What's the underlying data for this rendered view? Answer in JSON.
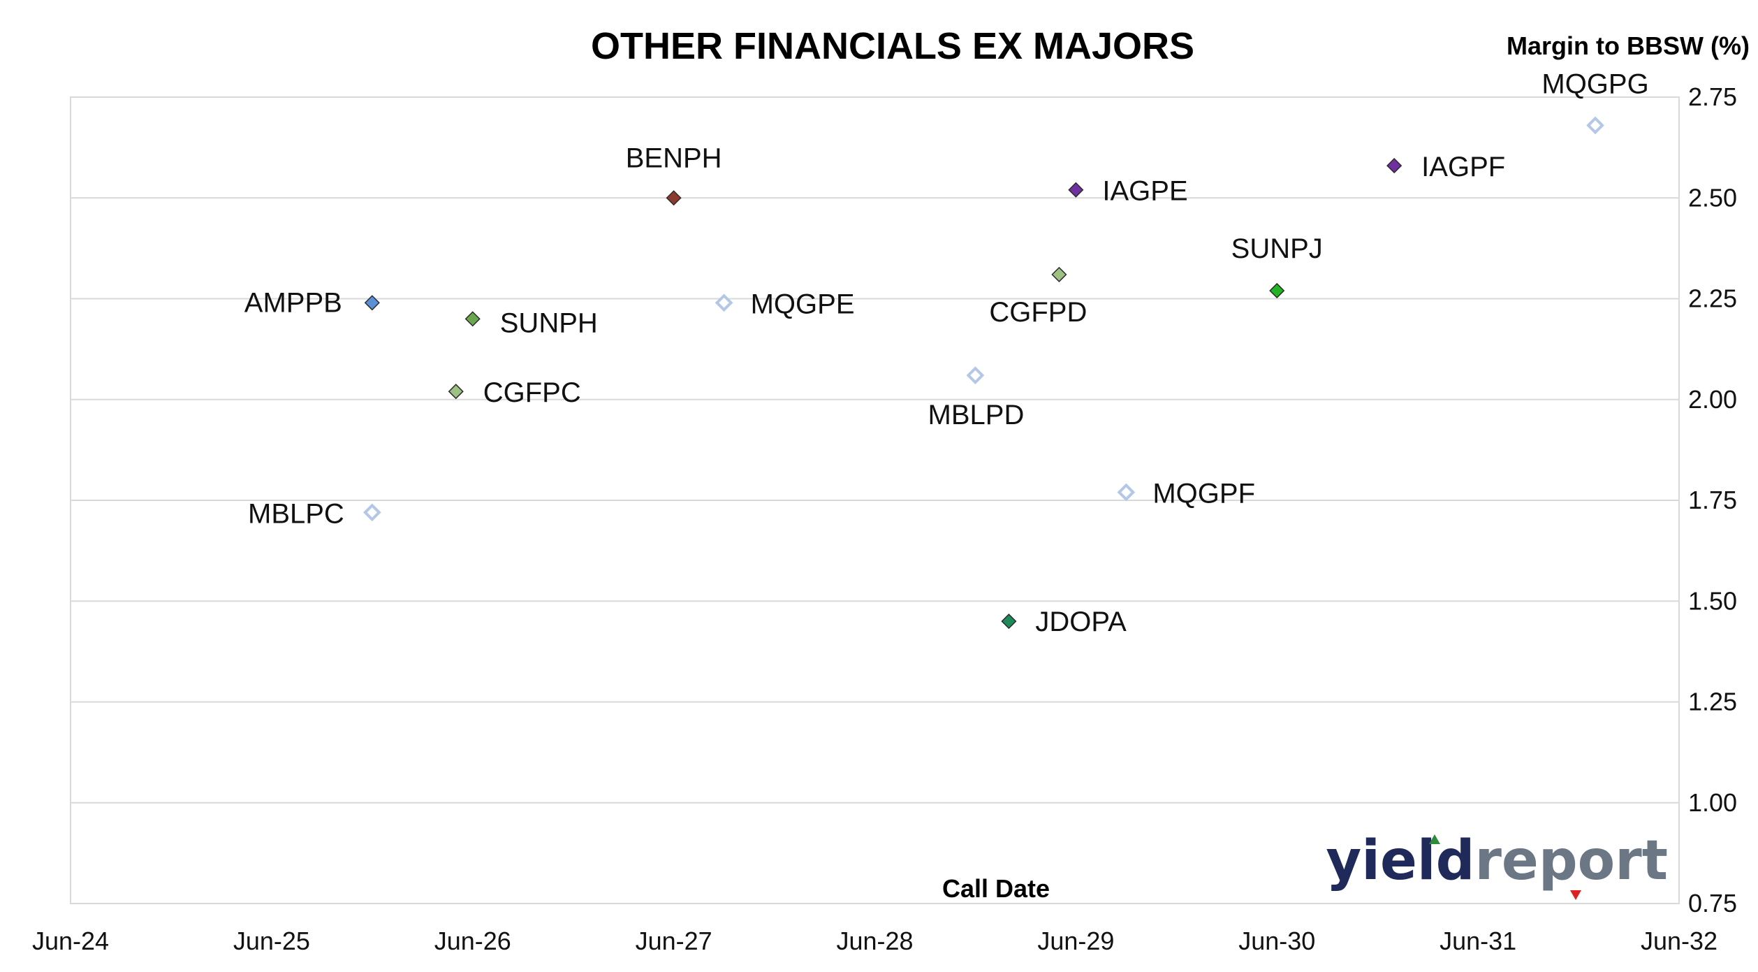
{
  "chart_data": {
    "type": "scatter",
    "title": "OTHER FINANCIALS EX MAJORS",
    "xlabel": "Call Date",
    "ylabel": "Margin to BBSW (%)",
    "x_ticks": [
      "Jun-24",
      "Jun-25",
      "Jun-26",
      "Jun-27",
      "Jun-28",
      "Jun-29",
      "Jun-30",
      "Jun-31",
      "Jun-32"
    ],
    "xlim": [
      "2024-06",
      "2032-06"
    ],
    "ylim": [
      0.75,
      2.75
    ],
    "y_ticks": [
      "0.75",
      "1.00",
      "1.25",
      "1.50",
      "1.75",
      "2.00",
      "2.25",
      "2.50",
      "2.75"
    ],
    "grid": "horizontal",
    "y_axis_side": "right",
    "points": [
      {
        "label": "AMPPB",
        "x": "2025-12",
        "y": 2.24,
        "color": "#5b8fd6",
        "style": "filled"
      },
      {
        "label": "SUNPH",
        "x": "2026-06",
        "y": 2.2,
        "color": "#6aa84f",
        "style": "filled"
      },
      {
        "label": "CGFPC",
        "x": "2026-05",
        "y": 2.02,
        "color": "#9dc183",
        "style": "filled"
      },
      {
        "label": "MBLPC",
        "x": "2025-12",
        "y": 1.72,
        "color": "#b4c7e7",
        "style": "hollow"
      },
      {
        "label": "BENPH",
        "x": "2027-06",
        "y": 2.5,
        "color": "#8b3a2f",
        "style": "filled"
      },
      {
        "label": "MQGPE",
        "x": "2027-09",
        "y": 2.24,
        "color": "#b4c7e7",
        "style": "hollow"
      },
      {
        "label": "MBLPD",
        "x": "2028-12",
        "y": 2.06,
        "color": "#b4c7e7",
        "style": "hollow"
      },
      {
        "label": "JDOPA",
        "x": "2029-02",
        "y": 1.45,
        "color": "#1e8a5a",
        "style": "filled"
      },
      {
        "label": "CGFPD",
        "x": "2029-05",
        "y": 2.31,
        "color": "#9dc183",
        "style": "filled"
      },
      {
        "label": "IAGPE",
        "x": "2029-06",
        "y": 2.52,
        "color": "#7030a0",
        "style": "filled"
      },
      {
        "label": "MQGPF",
        "x": "2029-09",
        "y": 1.77,
        "color": "#b4c7e7",
        "style": "hollow"
      },
      {
        "label": "SUNPJ",
        "x": "2030-06",
        "y": 2.27,
        "color": "#22b422",
        "style": "filled"
      },
      {
        "label": "IAGPF",
        "x": "2031-01",
        "y": 2.58,
        "color": "#7030a0",
        "style": "filled"
      },
      {
        "label": "MQGPG",
        "x": "2032-01",
        "y": 2.68,
        "color": "#b4c7e7",
        "style": "hollow"
      }
    ]
  },
  "logo": {
    "text_dark": "yield",
    "text_light": "report"
  },
  "colors": {
    "grid": "#d9d9d9",
    "plot_border": "#d9d9d9",
    "logo_dark": "#1f2a5a",
    "logo_light": "#6b7785",
    "logo_up": "#2e8b3e",
    "logo_down": "#e02020"
  }
}
